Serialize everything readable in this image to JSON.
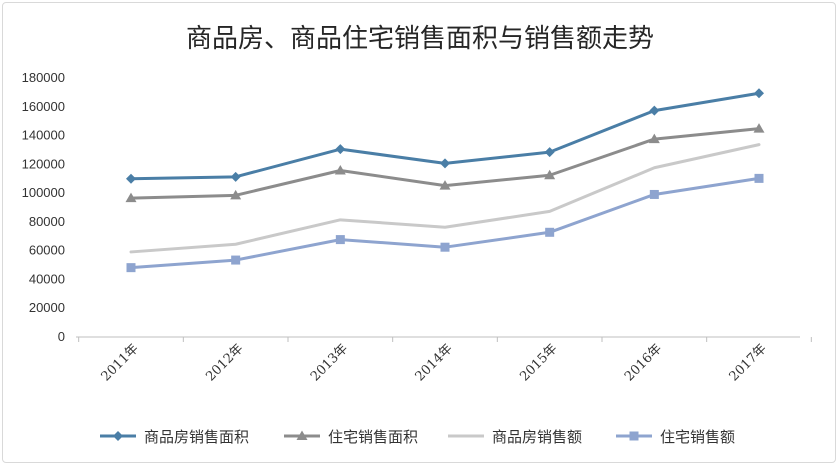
{
  "chart_data": {
    "type": "line",
    "title": "商品房、商品住宅销售面积与销售额走势",
    "categories": [
      "2011年",
      "2012年",
      "2013年",
      "2014年",
      "2015年",
      "2016年",
      "2017年"
    ],
    "y_ticks": [
      "0",
      "20000",
      "40000",
      "60000",
      "80000",
      "100000",
      "120000",
      "140000",
      "160000",
      "180000"
    ],
    "ylim": [
      0,
      180000
    ],
    "grid": false,
    "legend_position": "bottom",
    "series": [
      {
        "name": "商品房销售面积",
        "values": [
          109946,
          111304,
          130551,
          120649,
          128495,
          157349,
          169408
        ],
        "color": "#4a7ea6",
        "marker": "diamond"
      },
      {
        "name": "住宅销售面积",
        "values": [
          96528,
          98468,
          115723,
          105188,
          112412,
          137540,
          144789
        ],
        "color": "#8c8c8c",
        "marker": "triangle"
      },
      {
        "name": "商品房销售额",
        "values": [
          59119,
          64456,
          81428,
          76292,
          87281,
          117627,
          133701
        ],
        "color": "#c9c9c9",
        "marker": "none"
      },
      {
        "name": "住宅销售额",
        "values": [
          48198,
          53467,
          67695,
          62411,
          72770,
          99064,
          110240
        ],
        "color": "#8ea4cf",
        "marker": "square"
      }
    ]
  }
}
